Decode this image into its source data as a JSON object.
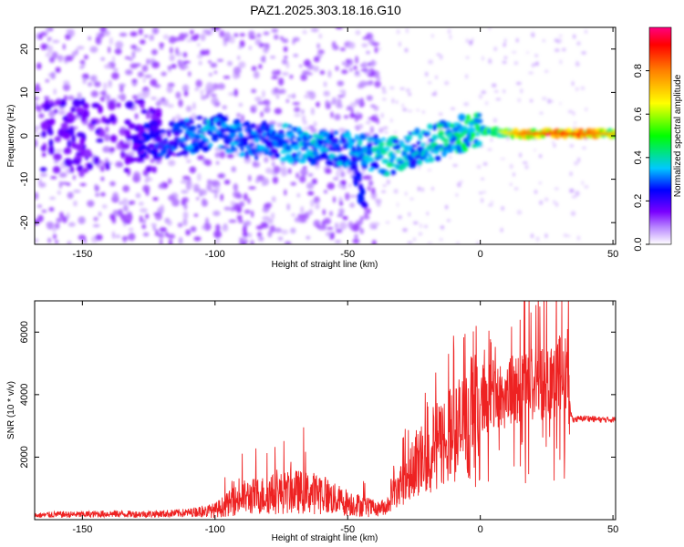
{
  "title": "PAZ1.2025.303.18.16.G10",
  "chart_data": [
    {
      "type": "heatmap",
      "title": "PAZ1.2025.303.18.16.G10",
      "xlabel": "Height of straight line (km)",
      "ylabel": "Frequency (Hz)",
      "xlim": [
        -168,
        51
      ],
      "ylim": [
        -25,
        25
      ],
      "xticks": [
        -150,
        -100,
        -50,
        0,
        50
      ],
      "yticks": [
        20,
        10,
        0,
        -10,
        -20
      ],
      "colorbar": {
        "label": "Normalized spectral amplitude",
        "range": [
          0,
          1
        ],
        "ticks": [
          "0.0",
          "0.2",
          "0.4",
          "0.6",
          "0.8"
        ],
        "colors": [
          "#ffffff",
          "#8a00ff",
          "#0000ff",
          "#00e5ff",
          "#00ff00",
          "#ffff00",
          "#ff8000",
          "#ff0000",
          "#ff0080"
        ]
      },
      "ridge": [
        {
          "x": -130,
          "f": -1,
          "a": 0.25
        },
        {
          "x": -120,
          "f": -1,
          "a": 0.3
        },
        {
          "x": -110,
          "f": 0,
          "a": 0.35
        },
        {
          "x": -100,
          "f": 1,
          "a": 0.4
        },
        {
          "x": -90,
          "f": -1,
          "a": 0.35
        },
        {
          "x": -80,
          "f": -1,
          "a": 0.35
        },
        {
          "x": -70,
          "f": -2,
          "a": 0.38
        },
        {
          "x": -60,
          "f": -3,
          "a": 0.4
        },
        {
          "x": -50,
          "f": -3,
          "a": 0.38
        },
        {
          "x": -40,
          "f": -4,
          "a": 0.4
        },
        {
          "x": -35,
          "f": -5,
          "a": 0.45
        },
        {
          "x": -25,
          "f": -3,
          "a": 0.4
        },
        {
          "x": -15,
          "f": -1,
          "a": 0.45
        },
        {
          "x": -5,
          "f": 1,
          "a": 0.5
        },
        {
          "x": 5,
          "f": 1,
          "a": 0.55
        },
        {
          "x": 15,
          "f": 0.5,
          "a": 0.8
        },
        {
          "x": 25,
          "f": 0.5,
          "a": 0.9
        },
        {
          "x": 35,
          "f": 0.5,
          "a": 0.9
        },
        {
          "x": 50,
          "f": 0.5,
          "a": 0.75
        }
      ]
    },
    {
      "type": "line",
      "xlabel": "Height of straight line (km)",
      "ylabel": "SNR (10 * v/v)",
      "xlim": [
        -168,
        51
      ],
      "ylim": [
        0,
        7000
      ],
      "xticks": [
        -150,
        -100,
        -50,
        0,
        50
      ],
      "yticks": [
        2000,
        4000,
        6000
      ],
      "series": [
        {
          "name": "SNR",
          "color": "#ee2222",
          "x": [
            -168,
            -160,
            -150,
            -140,
            -130,
            -120,
            -110,
            -100,
            -95,
            -90,
            -85,
            -80,
            -75,
            -70,
            -65,
            -60,
            -55,
            -50,
            -45,
            -40,
            -35,
            -30,
            -25,
            -20,
            -15,
            -10,
            -5,
            0,
            5,
            10,
            15,
            20,
            25,
            30,
            33,
            34,
            35,
            40,
            45,
            51
          ],
          "y": [
            120,
            150,
            150,
            170,
            160,
            170,
            200,
            300,
            500,
            700,
            750,
            800,
            850,
            900,
            850,
            850,
            650,
            550,
            450,
            350,
            500,
            2000,
            2800,
            3400,
            3900,
            4500,
            4800,
            5000,
            5100,
            5200,
            5400,
            5600,
            5800,
            6000,
            6100,
            3400,
            3200,
            3250,
            3200,
            3200
          ]
        }
      ]
    }
  ]
}
